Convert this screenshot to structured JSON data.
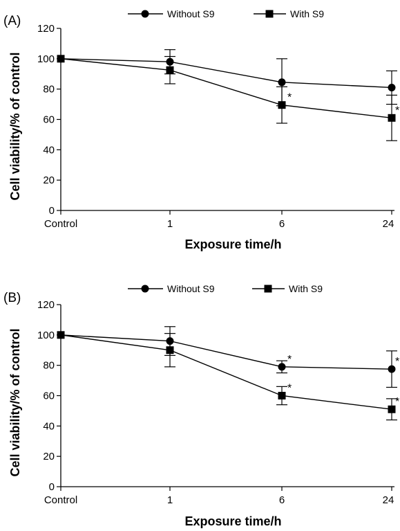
{
  "chart_data": [
    {
      "panel_label": "(A)",
      "type": "line",
      "categories": [
        "Control",
        "1",
        "6",
        "24"
      ],
      "xlabel": "Exposure time/h",
      "ylabel": "Cell viability/% of control",
      "ylim": [
        0,
        120
      ],
      "yticks": [
        "0",
        "20",
        "40",
        "60",
        "80",
        "100",
        "120"
      ],
      "grid": false,
      "legend_position": "top",
      "series": [
        {
          "name": "Without S9",
          "marker": "circle",
          "values": [
            100,
            98,
            84.5,
            81
          ],
          "errors": [
            0,
            8,
            15.5,
            11
          ],
          "significant": [
            false,
            false,
            false,
            false
          ]
        },
        {
          "name": "With S9",
          "marker": "square",
          "values": [
            100,
            92.5,
            69.5,
            61
          ],
          "errors": [
            0,
            9,
            12,
            15
          ],
          "significant": [
            false,
            false,
            true,
            true
          ]
        }
      ],
      "significance_mark": "*"
    },
    {
      "panel_label": "(B)",
      "type": "line",
      "categories": [
        "Control",
        "1",
        "6",
        "24"
      ],
      "xlabel": "Exposure time/h",
      "ylabel": "Cell viability/% of control",
      "ylim": [
        0,
        120
      ],
      "yticks": [
        "0",
        "20",
        "40",
        "60",
        "80",
        "100",
        "120"
      ],
      "grid": false,
      "legend_position": "top",
      "series": [
        {
          "name": "Without S9",
          "marker": "circle",
          "values": [
            100,
            96,
            79,
            77.5
          ],
          "errors": [
            0,
            9.5,
            4,
            12
          ],
          "significant": [
            false,
            false,
            true,
            true
          ]
        },
        {
          "name": "With S9",
          "marker": "square",
          "values": [
            100,
            90,
            60,
            51
          ],
          "errors": [
            0,
            11,
            6,
            7
          ],
          "significant": [
            false,
            false,
            true,
            true
          ]
        }
      ],
      "significance_mark": "*"
    }
  ]
}
